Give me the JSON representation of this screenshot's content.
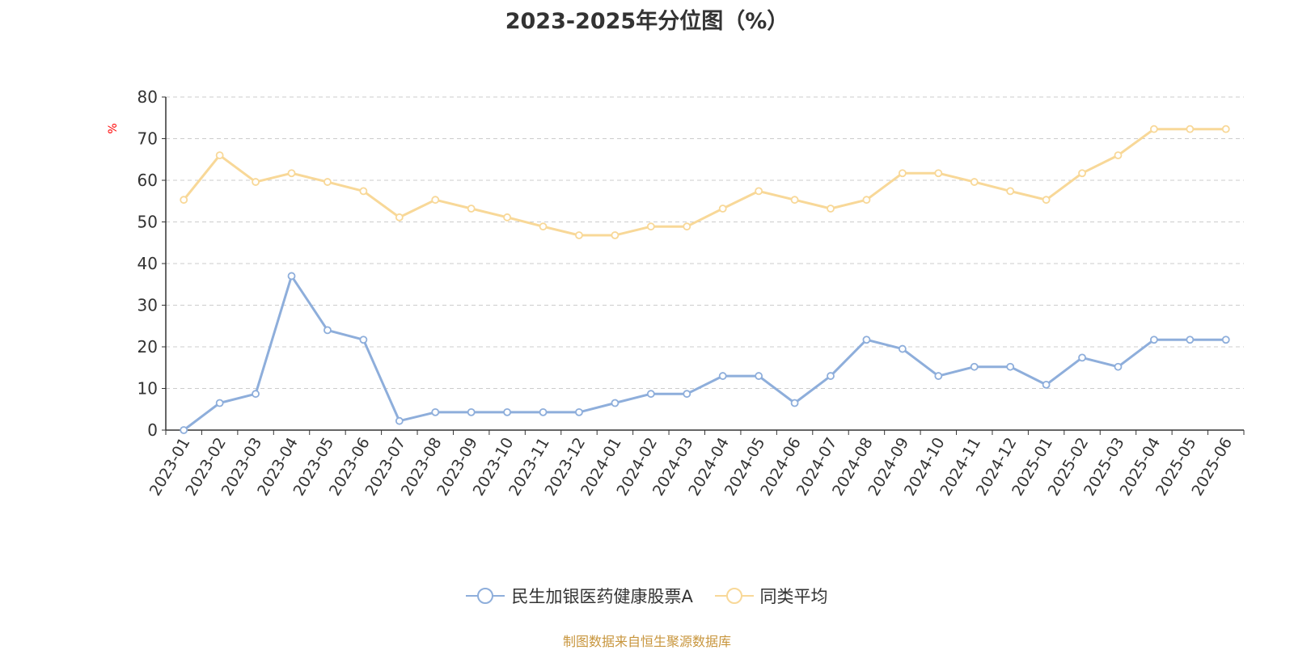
{
  "title": "2023-2025年分位图（%）",
  "footer": "制图数据来自恒生聚源数据库",
  "chart_data": {
    "type": "line",
    "title": "2023-2025年分位图（%）",
    "xlabel": "",
    "ylabel": "%",
    "ylim": [
      0,
      80
    ],
    "yticks": [
      0,
      10,
      20,
      30,
      40,
      50,
      60,
      70,
      80
    ],
    "grid": true,
    "legend_position": "bottom",
    "categories": [
      "2023-01",
      "2023-02",
      "2023-03",
      "2023-04",
      "2023-05",
      "2023-06",
      "2023-07",
      "2023-08",
      "2023-09",
      "2023-10",
      "2023-11",
      "2023-12",
      "2024-01",
      "2024-02",
      "2024-03",
      "2024-04",
      "2024-05",
      "2024-06",
      "2024-07",
      "2024-08",
      "2024-09",
      "2024-10",
      "2024-11",
      "2024-12",
      "2025-01",
      "2025-02",
      "2025-03",
      "2025-04",
      "2025-05",
      "2025-06"
    ],
    "series": [
      {
        "name": "民生加银医药健康股票A",
        "color": "#8eaedb",
        "values": [
          0,
          6.5,
          8.7,
          37,
          24,
          21.7,
          2.2,
          4.3,
          4.3,
          4.3,
          4.3,
          4.3,
          6.5,
          8.7,
          8.7,
          13,
          13,
          6.5,
          13,
          21.7,
          19.5,
          13,
          15.2,
          15.2,
          10.9,
          17.4,
          15.2,
          21.7,
          21.7,
          21.7
        ]
      },
      {
        "name": "同类平均",
        "color": "#f8d898",
        "values": [
          55.3,
          66,
          59.6,
          61.7,
          59.6,
          57.4,
          51.1,
          55.3,
          53.2,
          51.1,
          48.9,
          46.8,
          46.8,
          48.9,
          48.9,
          53.2,
          57.4,
          55.3,
          53.2,
          55.3,
          61.7,
          61.7,
          59.6,
          57.4,
          55.3,
          61.7,
          66,
          72.3,
          72.3,
          72.3
        ]
      }
    ]
  }
}
